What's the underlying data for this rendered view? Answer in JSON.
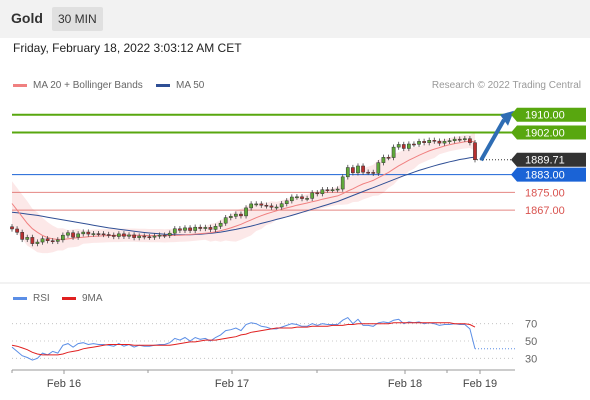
{
  "header": {
    "instrument": "Gold",
    "timeframe": "30 MIN"
  },
  "timestamp": "Friday, February 18, 2022 3:03:12 AM CET",
  "credit": "Research © 2022 Trading Central",
  "colors": {
    "resistance": "#58a70f",
    "pivot": "#1a63d6",
    "support": "#d9534f",
    "ma50": "#2f4f95",
    "bb": "#f08080",
    "price": "#333333"
  },
  "chart_data": [
    {
      "type": "line",
      "subtype": "candlestick",
      "legend": [
        {
          "name": "MA 20 + Bollinger Bands",
          "color": "#f08080"
        },
        {
          "name": "MA 50",
          "color": "#2f4f95"
        }
      ],
      "x_ticks": [
        "Feb 16",
        "Feb 17",
        "Feb 18",
        "Feb 19"
      ],
      "ylim": [
        1840,
        1918
      ],
      "last_price": 1889.71,
      "levels": [
        {
          "label": "1910.00",
          "value": 1910.0,
          "kind": "resistance"
        },
        {
          "label": "1902.00",
          "value": 1902.0,
          "kind": "resistance"
        },
        {
          "label": "1889.71",
          "value": 1889.71,
          "kind": "price"
        },
        {
          "label": "1883.00",
          "value": 1883.0,
          "kind": "pivot"
        },
        {
          "label": "1875.00",
          "value": 1875.0,
          "kind": "support"
        },
        {
          "label": "1867.00",
          "value": 1867.0,
          "kind": "support"
        }
      ],
      "close_series": [
        1858.5,
        1857.0,
        1853.8,
        1854.7,
        1851.9,
        1852.6,
        1854.1,
        1853.2,
        1852.9,
        1853.6,
        1855.7,
        1856.8,
        1854.8,
        1856.3,
        1857.1,
        1856.2,
        1856.4,
        1856.3,
        1856.0,
        1855.7,
        1855.1,
        1856.3,
        1855.2,
        1855.8,
        1854.6,
        1855.3,
        1855.0,
        1854.8,
        1855.3,
        1855.7,
        1855.6,
        1856.6,
        1858.6,
        1857.9,
        1859.0,
        1857.8,
        1859.3,
        1858.7,
        1859.2,
        1858.3,
        1859.7,
        1861.1,
        1863.6,
        1864.2,
        1865.2,
        1864.4,
        1868.0,
        1869.8,
        1869.8,
        1869.2,
        1868.9,
        1868.3,
        1868.4,
        1869.9,
        1871.2,
        1872.9,
        1873.0,
        1872.2,
        1872.3,
        1874.8,
        1874.4,
        1876.2,
        1876.1,
        1876.2,
        1876.5,
        1882.0,
        1886.2,
        1883.8,
        1886.9,
        1884.1,
        1884.0,
        1883.6,
        1888.4,
        1890.8,
        1890.7,
        1895.4,
        1896.6,
        1894.8,
        1896.8,
        1896.7,
        1898.0,
        1897.4,
        1898.5,
        1898.1,
        1897.2,
        1898.0,
        1898.3,
        1899.0,
        1898.9,
        1899.2,
        1897.4,
        1889.7
      ],
      "ma20": [
        1870.0,
        1867.0,
        1864.0,
        1861.0,
        1858.6,
        1857.0,
        1855.6,
        1854.6,
        1854.0,
        1853.8,
        1853.8,
        1854.0,
        1854.3,
        1854.6,
        1854.8,
        1855.0,
        1855.2,
        1855.3,
        1855.4,
        1855.5,
        1855.6,
        1855.6,
        1855.7,
        1855.7,
        1855.7,
        1855.6,
        1855.6,
        1855.5,
        1855.5,
        1855.5,
        1855.4,
        1855.5,
        1855.6,
        1855.7,
        1855.8,
        1856.0,
        1856.2,
        1856.4,
        1856.6,
        1856.8,
        1857.2,
        1857.7,
        1858.3,
        1859.0,
        1859.8,
        1860.6,
        1861.6,
        1862.6,
        1863.6,
        1864.5,
        1865.3,
        1866.0,
        1866.7,
        1867.4,
        1868.0,
        1868.6,
        1869.2,
        1869.7,
        1870.2,
        1870.8,
        1871.3,
        1871.9,
        1872.4,
        1872.9,
        1873.4,
        1874.4,
        1875.6,
        1876.6,
        1877.8,
        1878.8,
        1879.6,
        1880.4,
        1881.6,
        1882.8,
        1884.0,
        1885.5,
        1887.0,
        1888.2,
        1889.5,
        1890.6,
        1891.7,
        1892.7,
        1893.7,
        1894.5,
        1895.2,
        1895.9,
        1896.5,
        1897.0,
        1897.4,
        1897.8,
        1898.0,
        1897.8
      ],
      "ma50": [
        1866.0,
        1865.8,
        1865.5,
        1865.2,
        1864.9,
        1864.6,
        1864.2,
        1863.8,
        1863.4,
        1863.0,
        1862.6,
        1862.2,
        1861.8,
        1861.4,
        1861.0,
        1860.6,
        1860.2,
        1859.8,
        1859.4,
        1859.0,
        1858.7,
        1858.4,
        1858.1,
        1857.8,
        1857.5,
        1857.2,
        1856.9,
        1856.7,
        1856.5,
        1856.3,
        1856.1,
        1856.0,
        1855.9,
        1855.9,
        1855.9,
        1855.9,
        1856.0,
        1856.1,
        1856.3,
        1856.5,
        1856.8,
        1857.1,
        1857.5,
        1857.9,
        1858.3,
        1858.8,
        1859.3,
        1859.8,
        1860.4,
        1861.0,
        1861.6,
        1862.2,
        1862.8,
        1863.4,
        1864.0,
        1864.6,
        1865.3,
        1866.0,
        1866.7,
        1867.4,
        1868.1,
        1868.8,
        1869.5,
        1870.2,
        1870.9,
        1871.8,
        1872.7,
        1873.6,
        1874.5,
        1875.4,
        1876.3,
        1877.1,
        1878.0,
        1878.9,
        1879.8,
        1880.7,
        1881.6,
        1882.5,
        1883.3,
        1884.1,
        1884.9,
        1885.6,
        1886.3,
        1887.0,
        1887.6,
        1888.2,
        1888.8,
        1889.3,
        1889.8,
        1890.2,
        1890.6,
        1890.9
      ],
      "bb_width": [
        10,
        10,
        10,
        10,
        9,
        9,
        8,
        7,
        6,
        5,
        5,
        4,
        4,
        4,
        3,
        3,
        3,
        3,
        3,
        3,
        3,
        3,
        3,
        3,
        3,
        3,
        3,
        3,
        3,
        3,
        3,
        3,
        3,
        3,
        3,
        3,
        3,
        3,
        3,
        4,
        4,
        5,
        5,
        6,
        7,
        7,
        7,
        7,
        6,
        6,
        5,
        5,
        4,
        4,
        4,
        4,
        4,
        4,
        4,
        4,
        4,
        4,
        4,
        4,
        4,
        5,
        6,
        6,
        7,
        7,
        7,
        7,
        8,
        8,
        7,
        7,
        6,
        6,
        5,
        5,
        4,
        4,
        4,
        4,
        3,
        3,
        3,
        3,
        3,
        3,
        3,
        4
      ]
    },
    {
      "type": "line",
      "subtype": "rsi",
      "legend": [
        {
          "name": "RSI",
          "color": "#5b8ee6"
        },
        {
          "name": "9MA",
          "color": "#e02020"
        }
      ],
      "y_ticks": [
        70,
        50,
        30
      ],
      "ylim": [
        20,
        80
      ],
      "rsi": [
        43,
        38,
        33,
        31,
        28,
        30,
        36,
        34,
        38,
        36,
        45,
        47,
        43,
        47,
        48,
        46,
        47,
        46,
        46,
        45,
        44,
        47,
        44,
        46,
        43,
        45,
        44,
        44,
        45,
        46,
        46,
        48,
        53,
        51,
        54,
        50,
        54,
        52,
        53,
        50,
        54,
        57,
        62,
        63,
        65,
        62,
        69,
        71,
        70,
        67,
        66,
        64,
        64,
        66,
        68,
        70,
        69,
        67,
        67,
        70,
        68,
        70,
        69,
        69,
        69,
        74,
        77,
        70,
        75,
        68,
        68,
        67,
        71,
        72,
        71,
        74,
        75,
        70,
        72,
        71,
        72,
        70,
        71,
        70,
        68,
        69,
        69,
        70,
        69,
        69,
        64,
        41
      ],
      "rsi_ma": [
        45,
        44,
        42,
        40,
        37,
        35,
        34,
        34,
        34,
        34,
        35,
        37,
        38,
        39,
        41,
        42,
        43,
        44,
        45,
        46,
        46,
        46,
        46,
        46,
        45,
        45,
        45,
        45,
        45,
        45,
        45,
        45,
        46,
        47,
        48,
        49,
        49,
        50,
        51,
        51,
        51,
        52,
        53,
        54,
        55,
        57,
        58,
        60,
        61,
        62,
        63,
        64,
        65,
        65,
        65,
        65,
        66,
        66,
        66,
        67,
        67,
        67,
        67,
        68,
        68,
        68,
        69,
        69,
        70,
        70,
        70,
        70,
        70,
        70,
        70,
        71,
        71,
        71,
        71,
        71,
        71,
        71,
        71,
        71,
        71,
        71,
        71,
        70,
        70,
        70,
        69,
        66
      ]
    }
  ]
}
